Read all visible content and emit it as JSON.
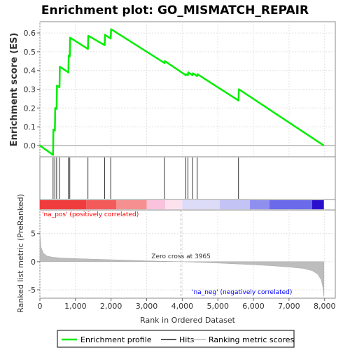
{
  "chart_data": {
    "type": "line",
    "title": "Enrichment plot: GO_MISMATCH_REPAIR",
    "xlabel": "Rank in Ordered Dataset",
    "top_ylabel": "Enrichment score (ES)",
    "bottom_ylabel": "Ranked list metric (PreRanked)",
    "xlim": [
      0,
      8300
    ],
    "es_ylim": [
      -0.06,
      0.66
    ],
    "metric_ylim": [
      -6.5,
      9.2
    ],
    "x_ticks": [
      0,
      1000,
      2000,
      3000,
      4000,
      5000,
      6000,
      7000,
      8000
    ],
    "x_tick_labels": [
      "0",
      "1,000",
      "2,000",
      "3,000",
      "4,000",
      "5,000",
      "6,000",
      "7,000",
      "8,000"
    ],
    "es_ticks": [
      0.0,
      0.1,
      0.2,
      0.3,
      0.4,
      0.5,
      0.6
    ],
    "es_tick_labels": [
      "0.0",
      "0.1",
      "0.2",
      "0.3",
      "0.4",
      "0.5",
      "0.6"
    ],
    "metric_ticks": [
      -5,
      0,
      5
    ],
    "metric_tick_labels": [
      "-5",
      "0",
      "5"
    ],
    "es_line_color": "#00ee00",
    "series": [
      {
        "name": "Enrichment profile",
        "x": [
          0,
          370,
          380,
          420,
          430,
          470,
          480,
          550,
          560,
          800,
          810,
          840,
          850,
          1350,
          1360,
          1820,
          1830,
          1990,
          2000,
          3500,
          3510,
          4100,
          4110,
          4160,
          4170,
          4290,
          4300,
          4420,
          4430,
          5580,
          5590,
          7980
        ],
        "y": [
          0.0,
          -0.05,
          0.085,
          0.08,
          0.2,
          0.195,
          0.32,
          0.31,
          0.42,
          0.39,
          0.48,
          0.475,
          0.575,
          0.515,
          0.585,
          0.535,
          0.59,
          0.57,
          0.62,
          0.44,
          0.45,
          0.375,
          0.38,
          0.375,
          0.39,
          0.375,
          0.385,
          0.37,
          0.38,
          0.24,
          0.3,
          0.0
        ]
      }
    ],
    "hits": [
      370,
      420,
      470,
      550,
      800,
      840,
      1350,
      1820,
      1990,
      3500,
      4100,
      4160,
      4290,
      4420,
      5580
    ],
    "metric_profile": {
      "x": [
        0,
        30,
        100,
        200,
        350,
        600,
        1000,
        1500,
        2000,
        2500,
        3000,
        3500,
        3965,
        4500,
        5000,
        5500,
        6000,
        6500,
        7000,
        7400,
        7650,
        7800,
        7900,
        7950,
        7980
      ],
      "y": [
        5.2,
        2.6,
        1.5,
        1.0,
        0.8,
        0.65,
        0.55,
        0.45,
        0.35,
        0.25,
        0.15,
        0.07,
        0.0,
        -0.12,
        -0.25,
        -0.4,
        -0.55,
        -0.72,
        -0.95,
        -1.2,
        -1.6,
        -2.2,
        -3.2,
        -4.5,
        -6.2
      ]
    },
    "zero_cross": 3965,
    "zero_cross_label": "Zero cross at 3965",
    "pos_label": "'na_pos' (positively correlated)",
    "neg_label": "'na_neg' (negatively correlated)",
    "pos_label_color": "#ff0000",
    "neg_label_color": "#0000ff",
    "heat_segments": [
      {
        "x0": 0,
        "x1": 1300,
        "color": "#f03c3c"
      },
      {
        "x0": 1300,
        "x1": 2150,
        "color": "#f35a5a"
      },
      {
        "x0": 2150,
        "x1": 3000,
        "color": "#f68f8f"
      },
      {
        "x0": 3000,
        "x1": 3520,
        "color": "#fac2dc"
      },
      {
        "x0": 3520,
        "x1": 4000,
        "color": "#fde2ee"
      },
      {
        "x0": 4000,
        "x1": 5050,
        "color": "#dcdcf8"
      },
      {
        "x0": 5050,
        "x1": 5900,
        "color": "#c3c3f5"
      },
      {
        "x0": 5900,
        "x1": 6450,
        "color": "#8f8ff0"
      },
      {
        "x0": 6450,
        "x1": 7650,
        "color": "#6a6aea"
      },
      {
        "x0": 7650,
        "x1": 7980,
        "color": "#2a10cc"
      }
    ],
    "legend": [
      {
        "label": "Enrichment profile",
        "color": "#00ee00"
      },
      {
        "label": "Hits",
        "color": "#555555"
      },
      {
        "label": "Ranking metric scores",
        "color": "#cccccc"
      }
    ],
    "legend_position": "bottom"
  }
}
